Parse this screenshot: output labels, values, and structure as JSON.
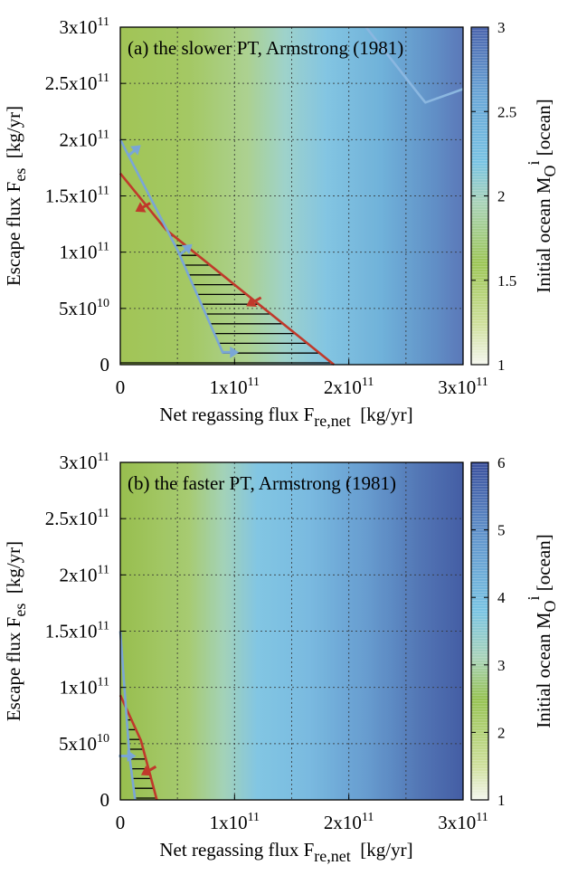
{
  "chart_data": [
    {
      "type": "heatmap",
      "title": "(a) the slower PT, Armstrong (1981)",
      "xlabel": "Net regassing flux F",
      "xlabel_sub": "re,net",
      "xlabel_unit": "[kg/yr]",
      "ylabel": "Escape flux F",
      "ylabel_sub": "es",
      "ylabel_unit": "[kg/yr]",
      "xlim": [
        0,
        300000000000.0
      ],
      "ylim": [
        0,
        300000000000.0
      ],
      "xticks": [
        {
          "v": 0,
          "label": "0",
          "exp": ""
        },
        {
          "v": 100000000000.0,
          "label": "1x10",
          "exp": "11"
        },
        {
          "v": 200000000000.0,
          "label": "2x10",
          "exp": "11"
        },
        {
          "v": 300000000000.0,
          "label": "3x10",
          "exp": "11"
        }
      ],
      "yticks": [
        {
          "v": 0,
          "label": "0",
          "exp": ""
        },
        {
          "v": 50000000000.0,
          "label": "5x10",
          "exp": "10"
        },
        {
          "v": 100000000000.0,
          "label": "1x10",
          "exp": "11"
        },
        {
          "v": 150000000000.0,
          "label": "1.5x10",
          "exp": "11"
        },
        {
          "v": 200000000000.0,
          "label": "2x10",
          "exp": "11"
        },
        {
          "v": 250000000000.0,
          "label": "2.5x10",
          "exp": "11"
        },
        {
          "v": 300000000000.0,
          "label": "3x10",
          "exp": "11"
        }
      ],
      "colorbar": {
        "label": "Initial ocean M",
        "label_sub": "O",
        "label_sup": "i",
        "label_unit": "[ocean]",
        "range": [
          1,
          3
        ],
        "ticks": [
          "1",
          "1.5",
          "2",
          "2.5",
          "3"
        ]
      },
      "series": [
        {
          "name": "red boundary",
          "color": "#c0392b",
          "x": [
            0,
            40000000000.0,
            187000000000.0
          ],
          "y": [
            170000000000.0,
            120000000000.0,
            0
          ]
        },
        {
          "name": "blue boundary",
          "color": "#7aa6d6",
          "x": [
            0,
            50000000000.0,
            90000000000.0
          ],
          "y": [
            200000000000.0,
            102000000000.0,
            10000000000.0
          ]
        },
        {
          "name": "blue contour upper",
          "color": "#8bb7e0",
          "x": [
            215000000000.0,
            263000000000.0,
            267000000000.0,
            300000000000.0
          ],
          "y": [
            300000000000.0,
            238000000000.0,
            233000000000.0,
            245000000000.0
          ]
        }
      ],
      "arrows": [
        {
          "color": "#7aa6d6",
          "x": 12000000000.0,
          "y": 190000000000.0,
          "dir": "up-right"
        },
        {
          "color": "#c0392b",
          "x": 20000000000.0,
          "y": 140000000000.0,
          "dir": "down-left"
        },
        {
          "color": "#7aa6d6",
          "x": 57000000000.0,
          "y": 102000000000.0,
          "dir": "up-right"
        },
        {
          "color": "#c0392b",
          "x": 117000000000.0,
          "y": 56000000000.0,
          "dir": "down-left"
        },
        {
          "color": "#7aa6d6",
          "x": 96000000000.0,
          "y": 11000000000.0,
          "dir": "right"
        }
      ]
    },
    {
      "type": "heatmap",
      "title": "(b) the faster PT, Armstrong (1981)",
      "xlabel": "Net regassing flux F",
      "xlabel_sub": "re,net",
      "xlabel_unit": "[kg/yr]",
      "ylabel": "Escape flux F",
      "ylabel_sub": "es",
      "ylabel_unit": "[kg/yr]",
      "xlim": [
        0,
        300000000000.0
      ],
      "ylim": [
        0,
        300000000000.0
      ],
      "xticks": [
        {
          "v": 0,
          "label": "0",
          "exp": ""
        },
        {
          "v": 100000000000.0,
          "label": "1x10",
          "exp": "11"
        },
        {
          "v": 200000000000.0,
          "label": "2x10",
          "exp": "11"
        },
        {
          "v": 300000000000.0,
          "label": "3x10",
          "exp": "11"
        }
      ],
      "yticks": [
        {
          "v": 0,
          "label": "0",
          "exp": ""
        },
        {
          "v": 50000000000.0,
          "label": "5x10",
          "exp": "10"
        },
        {
          "v": 100000000000.0,
          "label": "1x10",
          "exp": "11"
        },
        {
          "v": 150000000000.0,
          "label": "1.5x10",
          "exp": "11"
        },
        {
          "v": 200000000000.0,
          "label": "2x10",
          "exp": "11"
        },
        {
          "v": 250000000000.0,
          "label": "2.5x10",
          "exp": "11"
        },
        {
          "v": 300000000000.0,
          "label": "3x10",
          "exp": "11"
        }
      ],
      "colorbar": {
        "label": "Initial ocean M",
        "label_sub": "O",
        "label_sup": "i",
        "label_unit": "[ocean]",
        "range": [
          1,
          6
        ],
        "ticks": [
          "1",
          "2",
          "3",
          "4",
          "5",
          "6"
        ]
      },
      "series": [
        {
          "name": "red boundary",
          "color": "#c0392b",
          "x": [
            0,
            18000000000.0,
            32000000000.0
          ],
          "y": [
            93000000000.0,
            53000000000.0,
            0
          ]
        },
        {
          "name": "blue boundary",
          "color": "#7aa6d6",
          "x": [
            0,
            8000000000.0,
            13000000000.0
          ],
          "y": [
            150000000000.0,
            39000000000.0,
            0
          ]
        }
      ],
      "arrows": [
        {
          "color": "#7aa6d6",
          "x": 6000000000.0,
          "y": 39000000000.0,
          "dir": "right"
        },
        {
          "color": "#c0392b",
          "x": 25000000000.0,
          "y": 26000000000.0,
          "dir": "down-left"
        }
      ]
    }
  ]
}
